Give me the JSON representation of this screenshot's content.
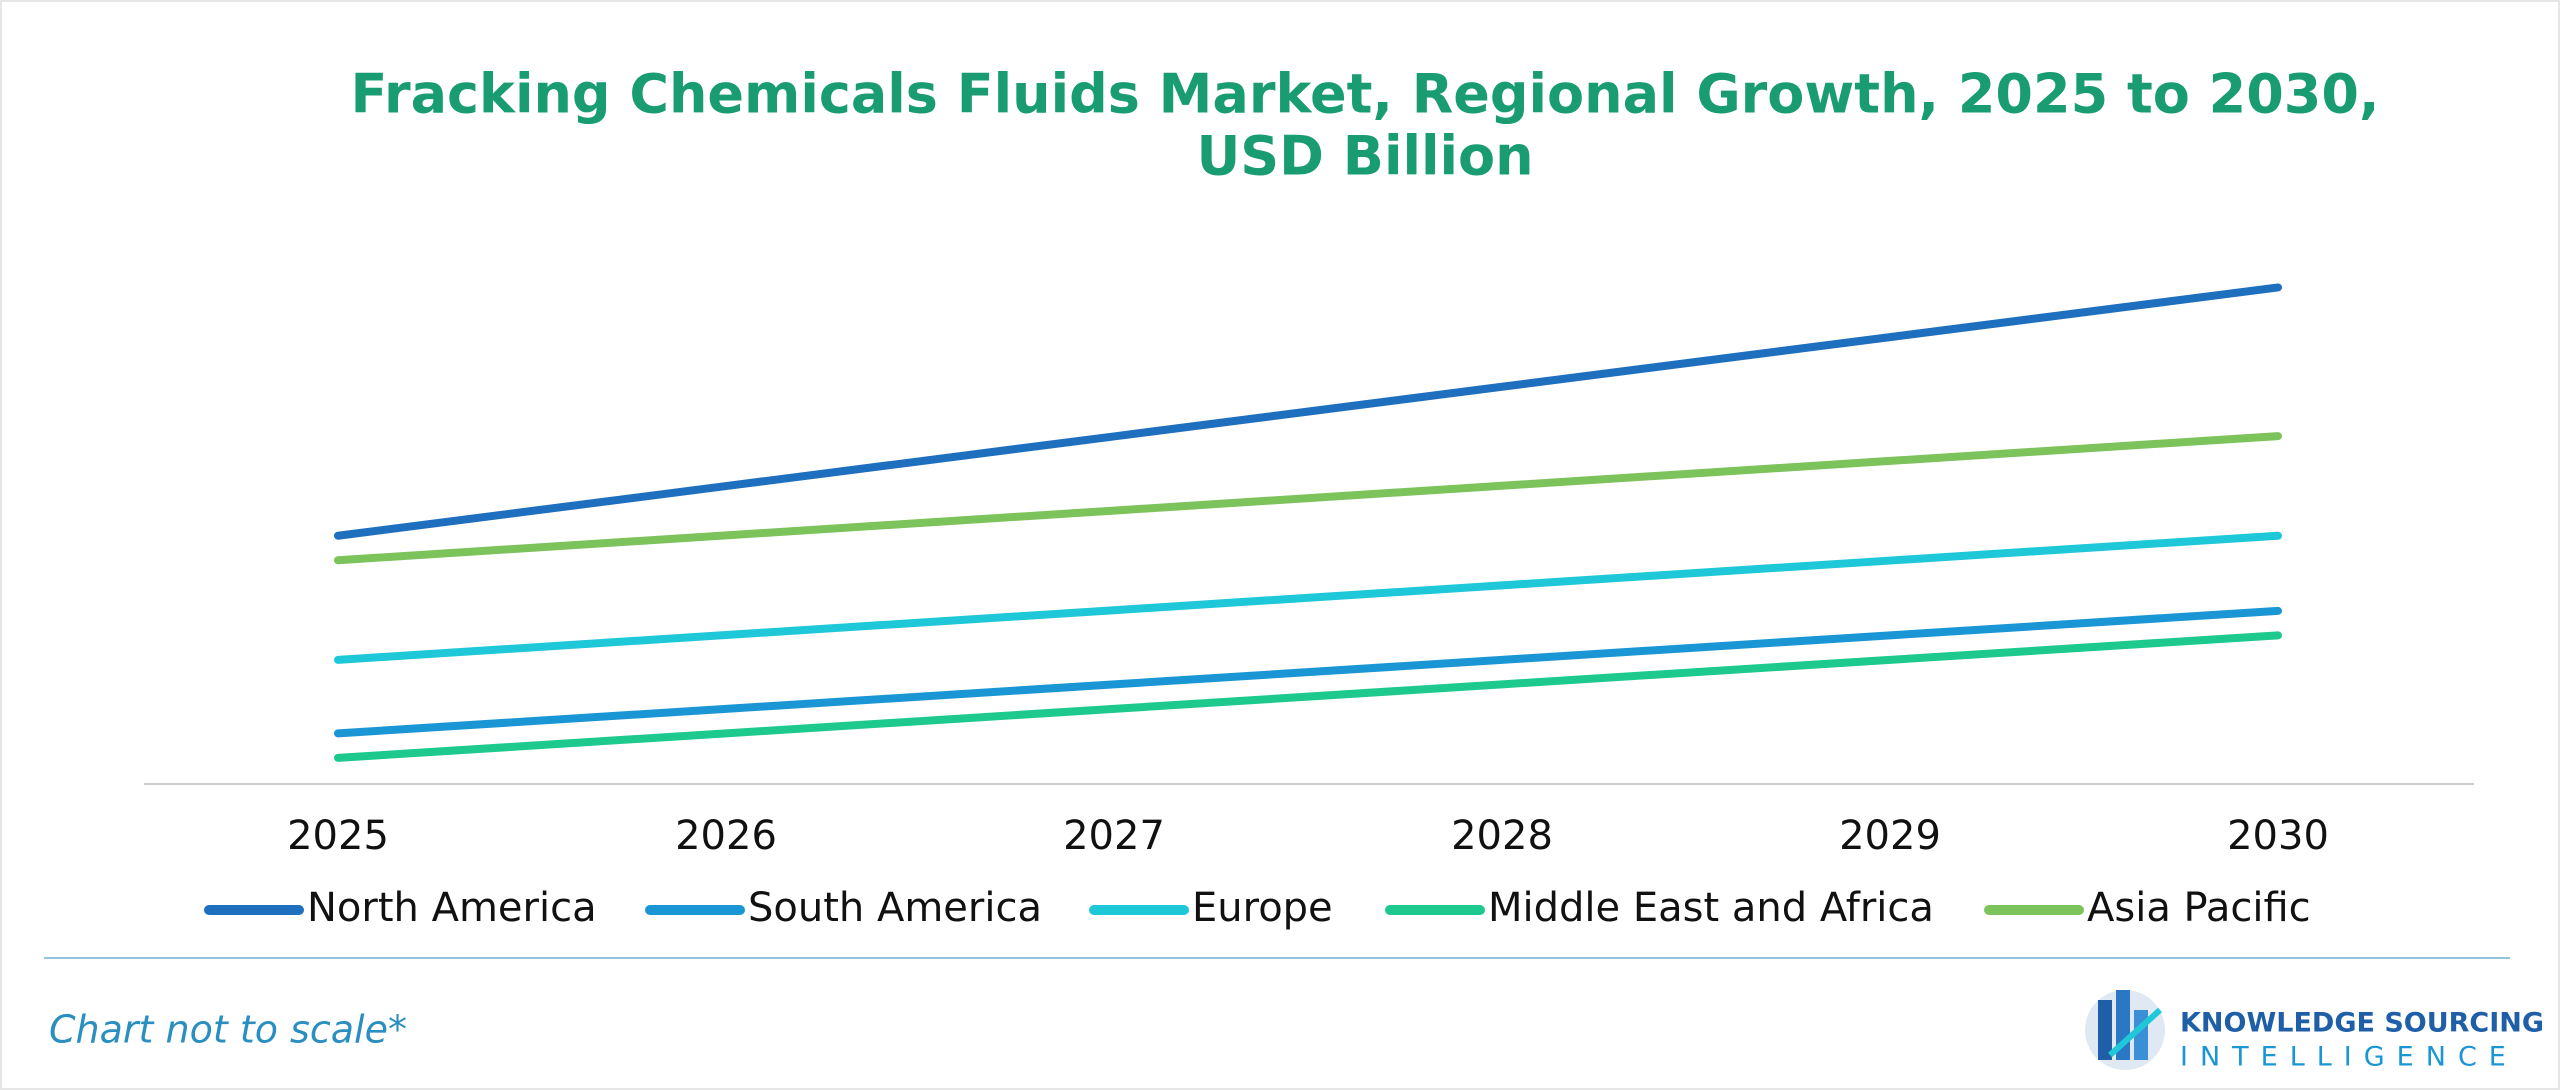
{
  "chart_data": {
    "type": "line",
    "title": "Fracking Chemicals Fluids Market, Regional Growth, 2025 to 2030,",
    "subtitle": "USD Billion",
    "categories": [
      "2025",
      "2026",
      "2027",
      "2028",
      "2029",
      "2030"
    ],
    "series": [
      {
        "name": "North America",
        "color": "#1f6fbf",
        "values": [
          152,
          182.4,
          212.8,
          243.2,
          273.6,
          304
        ]
      },
      {
        "name": "South America",
        "color": "#1a96d4",
        "values": [
          31,
          46,
          61,
          76,
          91,
          106
        ]
      },
      {
        "name": "Europe",
        "color": "#1ec8d8",
        "values": [
          76,
          91.2,
          106.4,
          121.6,
          136.8,
          152
        ]
      },
      {
        "name": "Middle East and Africa",
        "color": "#1ec98e",
        "values": [
          16,
          31,
          46,
          61,
          76,
          91
        ]
      },
      {
        "name": "Asia Pacific",
        "color": "#7cc35c",
        "values": [
          137,
          152.2,
          167.4,
          182.6,
          197.8,
          213
        ]
      }
    ],
    "ylim": [
      0,
      330
    ],
    "grid": false,
    "legend": "bottom"
  },
  "footer": {
    "note": "Chart not to scale*",
    "logo_line1": "KNOWLEDGE SOURCING",
    "logo_line2": "INTELLIGENCE"
  }
}
